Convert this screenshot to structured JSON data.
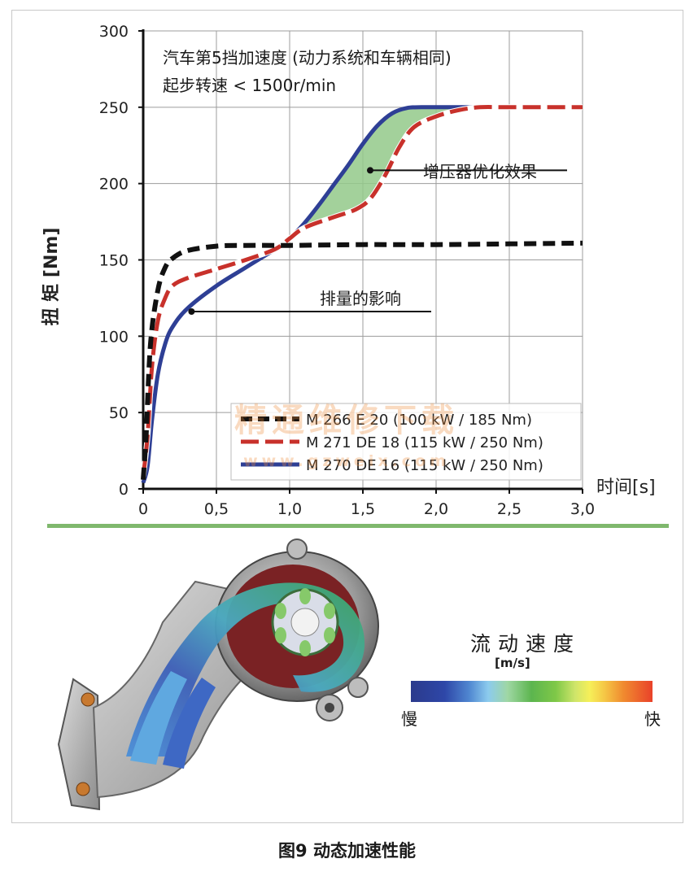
{
  "chart_data": {
    "type": "line",
    "title_line1": "汽车第5挡加速度 (动力系统和车辆相同)",
    "title_line2": "起步转速 < 1500r/min",
    "ylabel": "扭 矩 [Nm]",
    "xlabel": "时间[s]",
    "xlim": [
      0,
      3.0
    ],
    "ylim": [
      0,
      300
    ],
    "x_ticks": [
      "0",
      "0,5",
      "1,0",
      "1,5",
      "2,0",
      "2,5",
      "3,0"
    ],
    "x_tick_values": [
      0,
      0.5,
      1.0,
      1.5,
      2.0,
      2.5,
      3.0
    ],
    "y_ticks": [
      "0",
      "50",
      "100",
      "150",
      "200",
      "250",
      "300"
    ],
    "y_tick_values": [
      0,
      50,
      100,
      150,
      200,
      250,
      300
    ],
    "grid": true,
    "legend_position": "bottom-right",
    "series": [
      {
        "name": "M 266 E 20 (100 kW / 185 Nm)",
        "style": "dashed-black",
        "x": [
          0,
          0.02,
          0.05,
          0.1,
          0.15,
          0.2,
          0.3,
          0.5,
          0.7,
          1.0,
          1.5,
          2.0,
          2.5,
          3.0
        ],
        "y": [
          6,
          35,
          95,
          130,
          145,
          151,
          156,
          159,
          159.5,
          159.5,
          160,
          160,
          160.5,
          161
        ]
      },
      {
        "name": "M 271 DE 18 (115 kW / 250 Nm)",
        "style": "dashed-red",
        "x": [
          0,
          0.03,
          0.06,
          0.1,
          0.15,
          0.2,
          0.3,
          0.5,
          0.7,
          0.9,
          1.0,
          1.1,
          1.3,
          1.45,
          1.55,
          1.65,
          1.75,
          1.85,
          2.0,
          2.15,
          2.3,
          2.5,
          3.0
        ],
        "y": [
          8,
          35,
          80,
          110,
          125,
          133,
          138,
          144,
          150,
          157,
          164,
          171,
          178,
          183,
          190,
          205,
          224,
          237,
          244,
          248,
          250,
          250,
          250
        ]
      },
      {
        "name": "M 270 DE 16 (115 kW / 250 Nm)",
        "style": "solid-blue",
        "x": [
          0,
          0.03,
          0.06,
          0.1,
          0.15,
          0.2,
          0.3,
          0.5,
          0.7,
          0.9,
          1.0,
          1.1,
          1.2,
          1.3,
          1.4,
          1.5,
          1.6,
          1.7,
          1.8,
          1.9,
          2.0,
          2.3,
          3.0
        ],
        "y": [
          4,
          15,
          45,
          75,
          95,
          106,
          118,
          133,
          145,
          157,
          164,
          174,
          186,
          199,
          212,
          226,
          238,
          246,
          249.5,
          250,
          250,
          250,
          250
        ]
      }
    ],
    "annotations": [
      {
        "text": "增压器优化效果",
        "point_x": 1.55,
        "point_y": 206
      },
      {
        "text": "排量的影响",
        "point_x": 0.33,
        "point_y": 107
      }
    ]
  },
  "watermark": "精通维修下载",
  "watermark_url": "www.gzweix.com",
  "speed_legend": {
    "title": "流动速度",
    "unit": "[m/s]",
    "slow_label": "慢",
    "fast_label": "快"
  },
  "caption": "图9 动态加速性能"
}
